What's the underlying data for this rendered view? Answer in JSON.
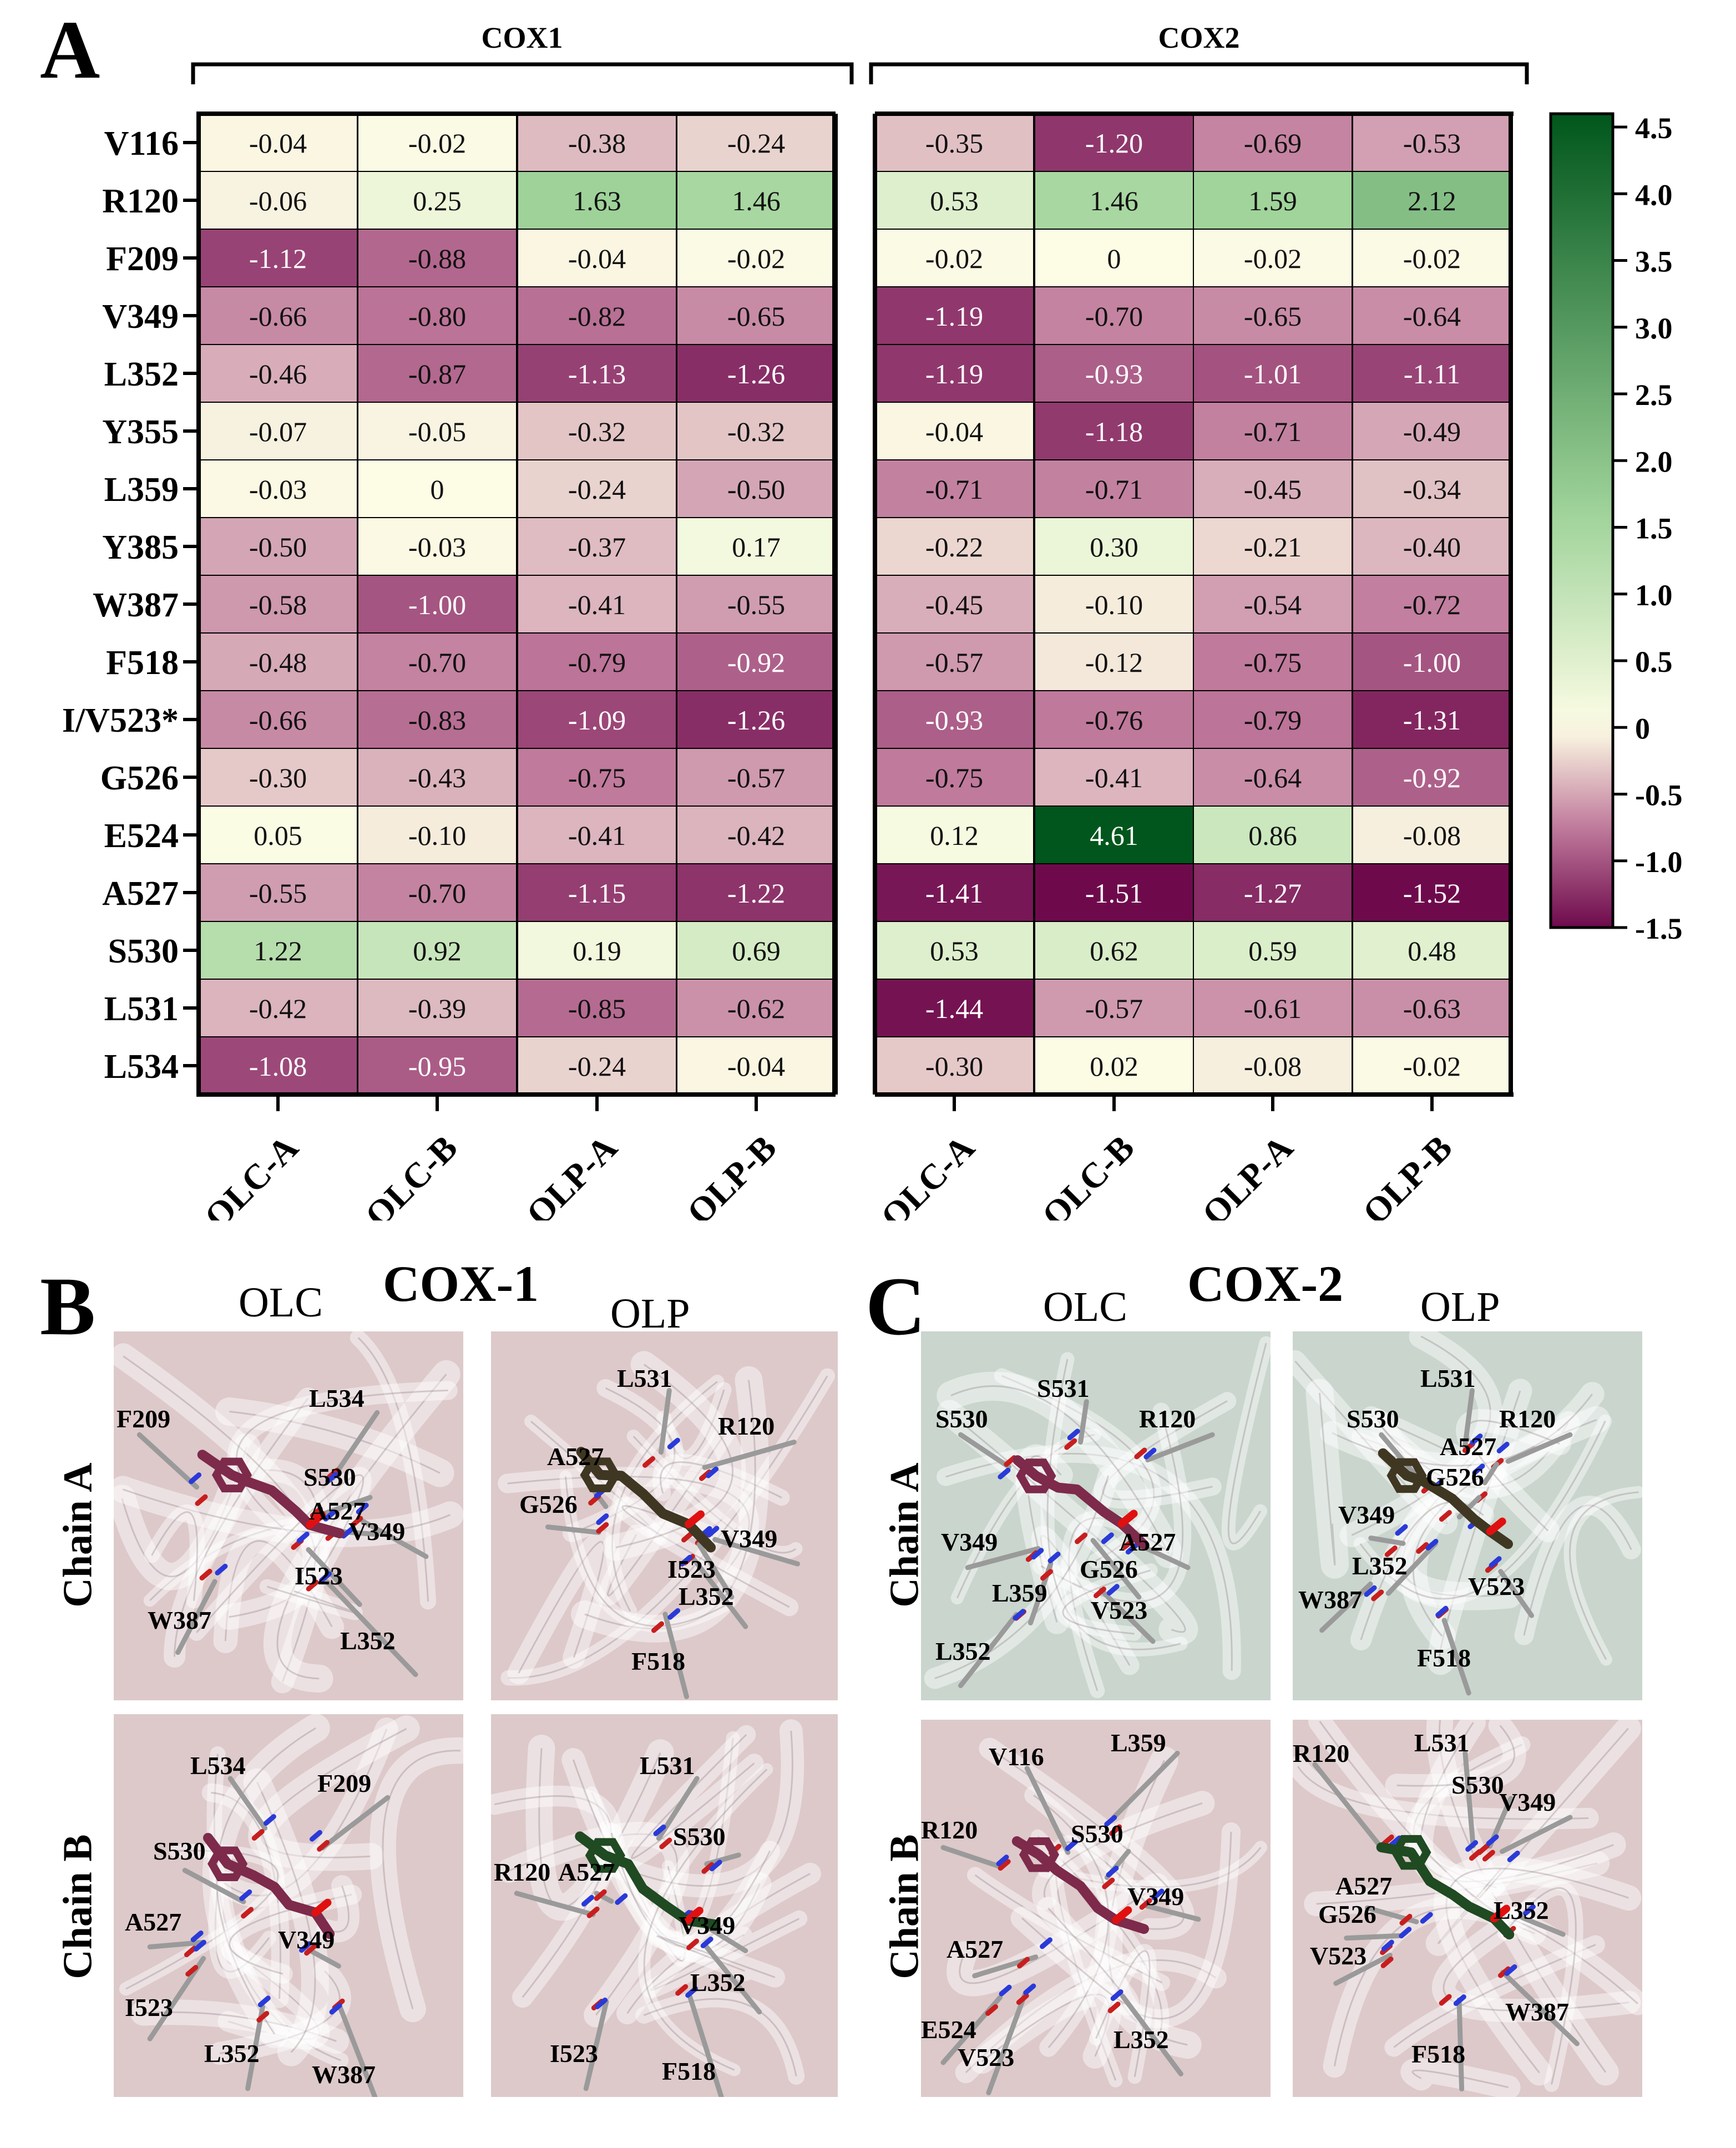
{
  "panels": {
    "a_letter": "A",
    "b_letter": "B",
    "c_letter": "C"
  },
  "chart_data": {
    "type": "heatmap",
    "title": "",
    "group_labels": [
      "COX1",
      "COX2"
    ],
    "rows": [
      "V116",
      "R120",
      "F209",
      "V349",
      "L352",
      "Y355",
      "L359",
      "Y385",
      "W387",
      "F518",
      "I/V523*",
      "G526",
      "E524",
      "A527",
      "S530",
      "L531",
      "L534"
    ],
    "columns": [
      "OLC-A",
      "OLC-B",
      "OLP-A",
      "OLP-B",
      "OLC-A",
      "OLC-B",
      "OLP-A",
      "OLP-B"
    ],
    "column_groups": [
      "COX1",
      "COX1",
      "COX1",
      "COX1",
      "COX2",
      "COX2",
      "COX2",
      "COX2"
    ],
    "values": [
      [
        -0.04,
        -0.02,
        -0.38,
        -0.24,
        -0.35,
        -1.2,
        -0.69,
        -0.53
      ],
      [
        -0.06,
        0.25,
        1.63,
        1.46,
        0.53,
        1.46,
        1.59,
        2.12
      ],
      [
        -1.12,
        -0.88,
        -0.04,
        -0.02,
        -0.02,
        0,
        -0.02,
        -0.02
      ],
      [
        -0.66,
        -0.8,
        -0.82,
        -0.65,
        -1.19,
        -0.7,
        -0.65,
        -0.64
      ],
      [
        -0.46,
        -0.87,
        -1.13,
        -1.26,
        -1.19,
        -0.93,
        -1.01,
        -1.11
      ],
      [
        -0.07,
        -0.05,
        -0.32,
        -0.32,
        -0.04,
        -1.18,
        -0.71,
        -0.49
      ],
      [
        -0.03,
        0,
        -0.24,
        -0.5,
        -0.71,
        -0.71,
        -0.45,
        -0.34
      ],
      [
        -0.5,
        -0.03,
        -0.37,
        0.17,
        -0.22,
        0.3,
        -0.21,
        -0.4
      ],
      [
        -0.58,
        -1.0,
        -0.41,
        -0.55,
        -0.45,
        -0.1,
        -0.54,
        -0.72
      ],
      [
        -0.48,
        -0.7,
        -0.79,
        -0.92,
        -0.57,
        -0.12,
        -0.75,
        -1.0
      ],
      [
        -0.66,
        -0.83,
        -1.09,
        -1.26,
        -0.93,
        -0.76,
        -0.79,
        -1.31
      ],
      [
        -0.3,
        -0.43,
        -0.75,
        -0.57,
        -0.75,
        -0.41,
        -0.64,
        -0.92
      ],
      [
        0.05,
        -0.1,
        -0.41,
        -0.42,
        0.12,
        4.61,
        0.86,
        -0.08
      ],
      [
        -0.55,
        -0.7,
        -1.15,
        -1.22,
        -1.41,
        -1.51,
        -1.27,
        -1.52
      ],
      [
        1.22,
        0.92,
        0.19,
        0.69,
        0.53,
        0.62,
        0.59,
        0.48
      ],
      [
        -0.42,
        -0.39,
        -0.85,
        -0.62,
        -1.44,
        -0.57,
        -0.61,
        -0.63
      ],
      [
        -1.08,
        -0.95,
        -0.24,
        -0.04,
        -0.3,
        0.02,
        -0.08,
        -0.02
      ]
    ],
    "labels": [
      [
        "-0.04",
        "-0.02",
        "-0.38",
        "-0.24",
        "-0.35",
        "-1.20",
        "-0.69",
        "-0.53"
      ],
      [
        "-0.06",
        "0.25",
        "1.63",
        "1.46",
        "0.53",
        "1.46",
        "1.59",
        "2.12"
      ],
      [
        "-1.12",
        "-0.88",
        "-0.04",
        "-0.02",
        "-0.02",
        "0",
        "-0.02",
        "-0.02"
      ],
      [
        "-0.66",
        "-0.80",
        "-0.82",
        "-0.65",
        "-1.19",
        "-0.70",
        "-0.65",
        "-0.64"
      ],
      [
        "-0.46",
        "-0.87",
        "-1.13",
        "-1.26",
        "-1.19",
        "-0.93",
        "-1.01",
        "-1.11"
      ],
      [
        "-0.07",
        "-0.05",
        "-0.32",
        "-0.32",
        "-0.04",
        "-1.18",
        "-0.71",
        "-0.49"
      ],
      [
        "-0.03",
        "0",
        "-0.24",
        "-0.50",
        "-0.71",
        "-0.71",
        "-0.45",
        "-0.34"
      ],
      [
        "-0.50",
        "-0.03",
        "-0.37",
        "0.17",
        "-0.22",
        "0.30",
        "-0.21",
        "-0.40"
      ],
      [
        "-0.58",
        "-1.00",
        "-0.41",
        "-0.55",
        "-0.45",
        "-0.10",
        "-0.54",
        "-0.72"
      ],
      [
        "-0.48",
        "-0.70",
        "-0.79",
        "-0.92",
        "-0.57",
        "-0.12",
        "-0.75",
        "-1.00"
      ],
      [
        "-0.66",
        "-0.83",
        "-1.09",
        "-1.26",
        "-0.93",
        "-0.76",
        "-0.79",
        "-1.31"
      ],
      [
        "-0.30",
        "-0.43",
        "-0.75",
        "-0.57",
        "-0.75",
        "-0.41",
        "-0.64",
        "-0.92"
      ],
      [
        "0.05",
        "-0.10",
        "-0.41",
        "-0.42",
        "0.12",
        "4.61",
        "0.86",
        "-0.08"
      ],
      [
        "-0.55",
        "-0.70",
        "-1.15",
        "-1.22",
        "-1.41",
        "-1.51",
        "-1.27",
        "-1.52"
      ],
      [
        "1.22",
        "0.92",
        "0.19",
        "0.69",
        "0.53",
        "0.62",
        "0.59",
        "0.48"
      ],
      [
        "-0.42",
        "-0.39",
        "-0.85",
        "-0.62",
        "-1.44",
        "-0.57",
        "-0.61",
        "-0.63"
      ],
      [
        "-1.08",
        "-0.95",
        "-0.24",
        "-0.04",
        "-0.30",
        "0.02",
        "-0.08",
        "-0.02"
      ]
    ],
    "colorbar": {
      "range": [
        -1.5,
        4.6
      ],
      "ticks": [
        "4.5",
        "4.0",
        "3.5",
        "3.0",
        "2.5",
        "2.0",
        "1.5",
        "1.0",
        "0.5",
        "0",
        "-0.5",
        "-1.0",
        "-1.5"
      ],
      "tick_values": [
        4.5,
        4.0,
        3.5,
        3.0,
        2.5,
        2.0,
        1.5,
        1.0,
        0.5,
        0,
        -0.5,
        -1.0,
        -1.5
      ],
      "colors": {
        "neg_end": "#6e0a4c",
        "neg_mid": "#c07a9c",
        "neutral": "#fdfde6",
        "pos_mid": "#9fd39a",
        "pos_end": "#00561c"
      }
    }
  },
  "structures": {
    "cox1_title": "COX-1",
    "cox2_title": "COX-2",
    "olc": "OLC",
    "olp": "OLP",
    "chain_a": "Chain A",
    "chain_b": "Chain B",
    "colors": {
      "cox1_bg": "#ddc9ca",
      "cox2_a_bg": "#c9d5cd",
      "cox2_b_bg": "#ddc9ca",
      "olc_ligand": "#7d2a4b",
      "olp_ligand": "#3f3722",
      "olp_ligand_b": "#1f4a22"
    },
    "b_olc_a_labels": [
      "F209",
      "L534",
      "S530",
      "A527",
      "V349",
      "I523",
      "W387",
      "L352"
    ],
    "b_olp_a_labels": [
      "L531",
      "R120",
      "A527",
      "G526",
      "V349",
      "I523",
      "L352",
      "F518"
    ],
    "b_olc_b_labels": [
      "L534",
      "F209",
      "S530",
      "A527",
      "V349",
      "I523",
      "L352",
      "W387"
    ],
    "b_olp_b_labels": [
      "L531",
      "S530",
      "R120",
      "A527",
      "V349",
      "L352",
      "I523",
      "F518"
    ],
    "c_olc_a_labels": [
      "S531",
      "S530",
      "R120",
      "V349",
      "A527",
      "G526",
      "L359",
      "V523",
      "L352"
    ],
    "c_olp_a_labels": [
      "L531",
      "S530",
      "R120",
      "A527",
      "G526",
      "V349",
      "L352",
      "V523",
      "W387",
      "F518"
    ],
    "c_olc_b_labels": [
      "V116",
      "L359",
      "R120",
      "S530",
      "V349",
      "A527",
      "E524",
      "V523",
      "L352"
    ],
    "c_olp_b_labels": [
      "R120",
      "L531",
      "S530",
      "V349",
      "A527",
      "G526",
      "L352",
      "V523",
      "W387",
      "F518"
    ]
  }
}
